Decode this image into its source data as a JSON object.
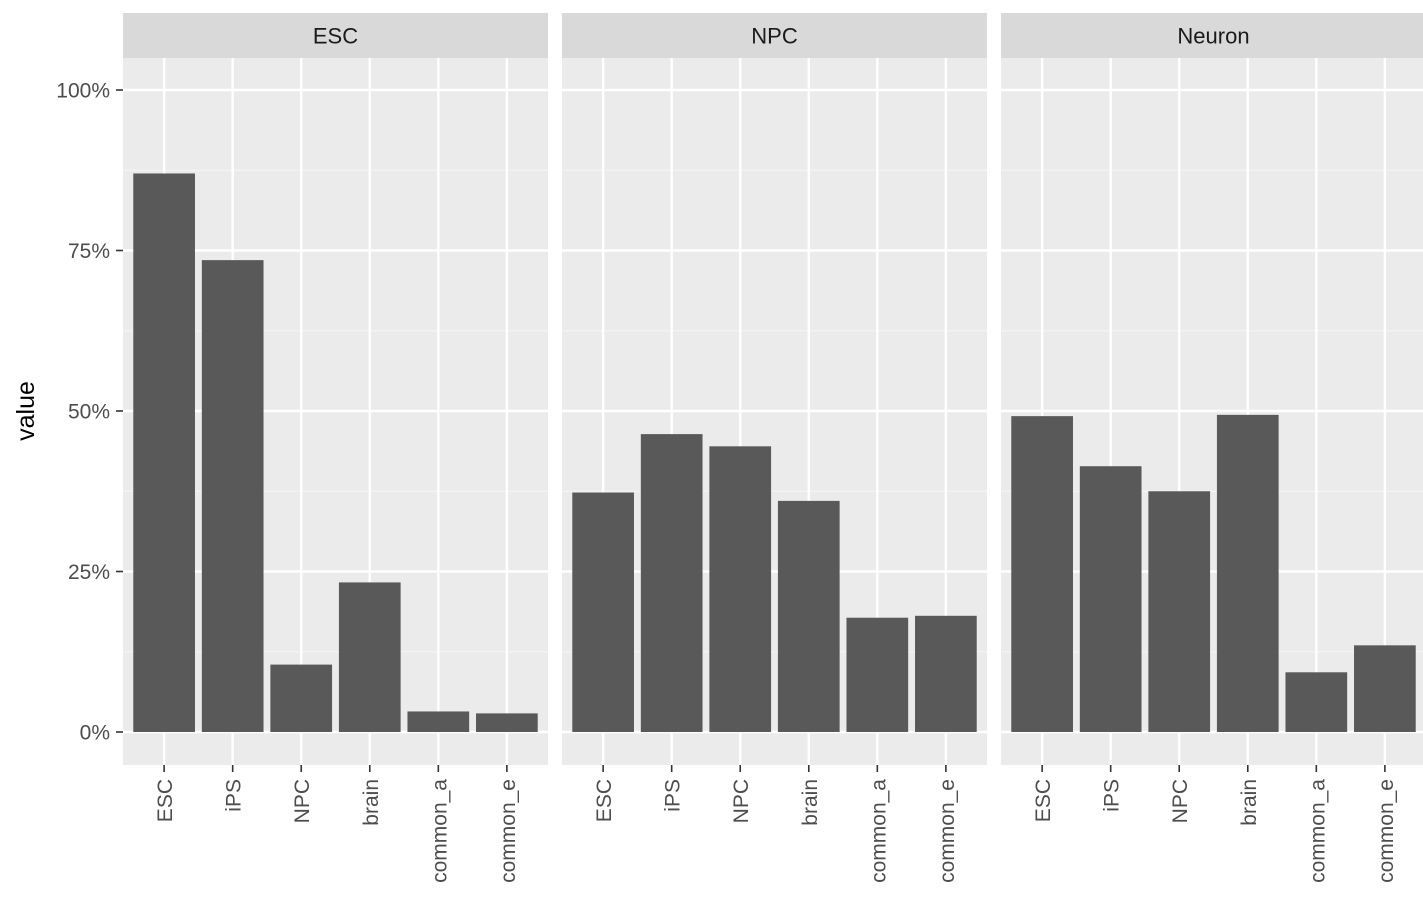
{
  "chart_data": {
    "type": "bar",
    "ylabel": "value",
    "xlabel": "",
    "ylim": [
      -0.045,
      1.07
    ],
    "y_ticks": [
      0,
      0.25,
      0.5,
      0.75,
      1.0
    ],
    "y_tick_labels": [
      "0%",
      "25%",
      "50%",
      "75%",
      "100%"
    ],
    "categories": [
      "ESC",
      "iPS",
      "NPC",
      "brain",
      "common_a",
      "common_e"
    ],
    "panels": [
      {
        "name": "ESC",
        "values": [
          0.87,
          0.735,
          0.105,
          0.233,
          0.032,
          0.029
        ]
      },
      {
        "name": "NPC",
        "values": [
          0.373,
          0.464,
          0.445,
          0.36,
          0.178,
          0.181
        ]
      },
      {
        "name": "Neuron",
        "values": [
          0.492,
          0.414,
          0.375,
          0.494,
          0.093,
          0.135
        ]
      }
    ],
    "colors": {
      "bar": "#595959",
      "panel_bg": "#ebebeb",
      "strip_bg": "#d9d9d9",
      "grid_major": "#ffffff",
      "grid_minor": "#f4f4f4"
    },
    "grid": true
  }
}
